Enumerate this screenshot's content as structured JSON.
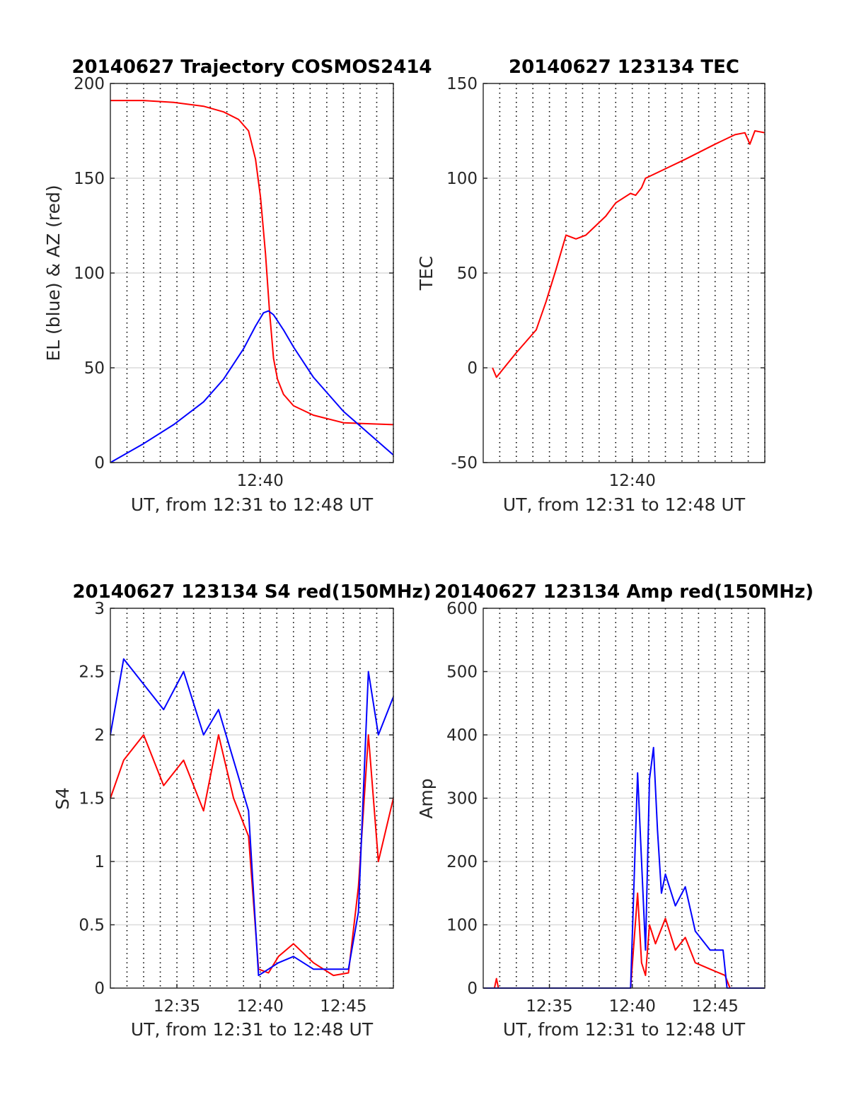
{
  "chart_data": [
    {
      "type": "line",
      "title": "20140627 Trajectory COSMOS2414",
      "xlabel": "UT, from 12:31 to 12:48 UT",
      "ylabel": "EL (blue) & AZ (red)",
      "xlim": [
        12.5167,
        12.8
      ],
      "ylim": [
        0,
        200
      ],
      "yticks": [
        0,
        50,
        100,
        150,
        200
      ],
      "xticks": [
        {
          "value": 12.6667,
          "label": "12:40"
        }
      ],
      "grid": true,
      "series": [
        {
          "color": "#ff0000",
          "x": [
            12.5167,
            12.55,
            12.58,
            12.61,
            12.63,
            12.645,
            12.655,
            12.662,
            12.667,
            12.672,
            12.676,
            12.68,
            12.684,
            12.69,
            12.7,
            12.72,
            12.75,
            12.8
          ],
          "y": [
            191,
            191,
            190,
            188,
            185,
            181,
            175,
            160,
            140,
            110,
            80,
            55,
            44,
            36,
            30,
            25,
            21,
            20
          ]
        },
        {
          "color": "#0000ff",
          "x": [
            12.5167,
            12.55,
            12.58,
            12.61,
            12.63,
            12.65,
            12.662,
            12.67,
            12.675,
            12.68,
            12.69,
            12.7,
            12.72,
            12.75,
            12.8
          ],
          "y": [
            0,
            10,
            20,
            32,
            44,
            60,
            72,
            79,
            80,
            78,
            70,
            61,
            45,
            27,
            4
          ]
        }
      ]
    },
    {
      "type": "line",
      "title": "20140627 123134 TEC",
      "xlabel": "UT, from 12:31 to 12:48 UT",
      "ylabel": "TEC",
      "xlim": [
        12.5167,
        12.8
      ],
      "ylim": [
        -50,
        150
      ],
      "yticks": [
        -50,
        0,
        50,
        100,
        150
      ],
      "xticks": [
        {
          "value": 12.6667,
          "label": "12:40"
        }
      ],
      "grid": true,
      "series": [
        {
          "color": "#ff0000",
          "x": [
            12.526,
            12.53,
            12.55,
            12.57,
            12.58,
            12.59,
            12.6,
            12.61,
            12.62,
            12.63,
            12.64,
            12.65,
            12.665,
            12.67,
            12.676,
            12.68,
            12.7,
            12.72,
            12.75,
            12.77,
            12.78,
            12.785,
            12.79,
            12.8
          ],
          "y": [
            0,
            -5,
            8,
            20,
            35,
            52,
            70,
            68,
            70,
            75,
            80,
            87,
            92,
            91,
            95,
            100,
            105,
            110,
            118,
            123,
            124,
            118,
            125,
            124
          ]
        }
      ]
    },
    {
      "type": "line",
      "title": "20140627 123134 S4 red(150MHz)",
      "xlabel": "UT, from 12:31 to 12:48 UT",
      "ylabel": "S4",
      "xlim": [
        12.5167,
        12.8
      ],
      "ylim": [
        0,
        3
      ],
      "yticks": [
        0,
        0.5,
        1,
        1.5,
        2,
        2.5,
        3
      ],
      "xticks": [
        {
          "value": 12.5833,
          "label": "12:35"
        },
        {
          "value": 12.6667,
          "label": "12:40"
        },
        {
          "value": 12.75,
          "label": "12:45"
        }
      ],
      "grid": true,
      "series": [
        {
          "color": "#ff0000",
          "x": [
            12.5167,
            12.53,
            12.55,
            12.57,
            12.59,
            12.61,
            12.625,
            12.64,
            12.655,
            12.665,
            12.675,
            12.685,
            12.7,
            12.72,
            12.74,
            12.755,
            12.765,
            12.775,
            12.785,
            12.8
          ],
          "y": [
            1.5,
            1.8,
            2.0,
            1.6,
            1.8,
            1.4,
            2.0,
            1.5,
            1.2,
            0.15,
            0.12,
            0.25,
            0.35,
            0.2,
            0.1,
            0.12,
            0.8,
            2.0,
            1.0,
            1.5
          ]
        },
        {
          "color": "#0000ff",
          "x": [
            12.5167,
            12.53,
            12.55,
            12.57,
            12.59,
            12.61,
            12.625,
            12.64,
            12.655,
            12.665,
            12.675,
            12.685,
            12.7,
            12.72,
            12.74,
            12.755,
            12.765,
            12.775,
            12.785,
            12.8
          ],
          "y": [
            2.0,
            2.6,
            2.4,
            2.2,
            2.5,
            2.0,
            2.2,
            1.8,
            1.4,
            0.1,
            0.15,
            0.2,
            0.25,
            0.15,
            0.15,
            0.15,
            0.6,
            2.5,
            2.0,
            2.3
          ]
        }
      ]
    },
    {
      "type": "line",
      "title": "20140627 123134 Amp red(150MHz)",
      "xlabel": "UT, from 12:31 to 12:48 UT",
      "ylabel": "Amp",
      "xlim": [
        12.5167,
        12.8
      ],
      "ylim": [
        0,
        600
      ],
      "yticks": [
        0,
        100,
        200,
        300,
        400,
        500,
        600
      ],
      "xticks": [
        {
          "value": 12.5833,
          "label": "12:35"
        },
        {
          "value": 12.6667,
          "label": "12:40"
        },
        {
          "value": 12.75,
          "label": "12:45"
        }
      ],
      "grid": true,
      "series": [
        {
          "color": "#ff0000",
          "x": [
            12.5167,
            12.528,
            12.53,
            12.532,
            12.56,
            12.6,
            12.64,
            12.665,
            12.672,
            12.676,
            12.68,
            12.684,
            12.69,
            12.7,
            12.71,
            12.72,
            12.73,
            12.745,
            12.76,
            12.765,
            12.8
          ],
          "y": [
            0,
            0,
            15,
            0,
            0,
            0,
            0,
            0,
            150,
            40,
            20,
            100,
            70,
            110,
            60,
            80,
            40,
            30,
            20,
            0,
            0
          ]
        },
        {
          "color": "#0000ff",
          "x": [
            12.5167,
            12.56,
            12.6,
            12.64,
            12.665,
            12.672,
            12.676,
            12.68,
            12.684,
            12.688,
            12.692,
            12.696,
            12.7,
            12.71,
            12.72,
            12.73,
            12.745,
            12.758,
            12.762,
            12.765,
            12.8
          ],
          "y": [
            0,
            0,
            0,
            0,
            0,
            340,
            200,
            60,
            330,
            380,
            250,
            150,
            180,
            130,
            160,
            90,
            60,
            60,
            0,
            0,
            0
          ]
        }
      ]
    }
  ]
}
